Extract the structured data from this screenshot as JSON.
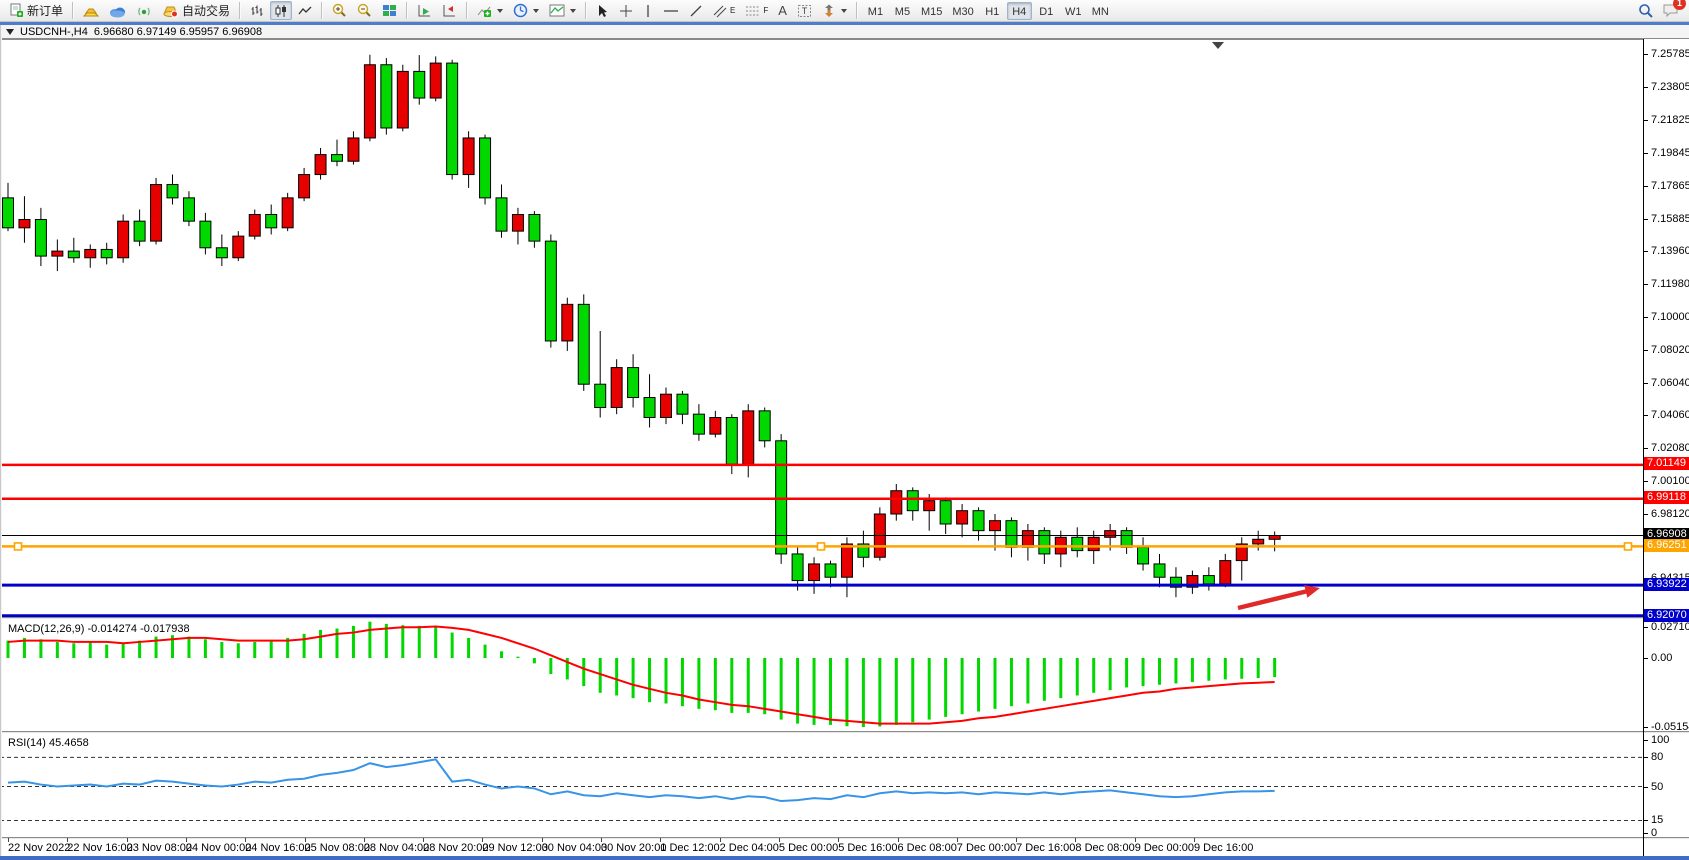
{
  "toolbar": {
    "new_order_label": "新订单",
    "auto_trading_label": "自动交易",
    "tool_glyphs": {
      "text_tool": "A",
      "label_tool": "T",
      "channel_sub": "E",
      "fibo_sub": "F"
    },
    "timeframes": [
      "M1",
      "M5",
      "M15",
      "M30",
      "H1",
      "H4",
      "D1",
      "W1",
      "MN"
    ],
    "active_timeframe": "H4",
    "notification_count": "1"
  },
  "chart_header": {
    "symbol": "USDCNH-,H4",
    "ohlc": "6.96680 6.97149 6.95957 6.96908"
  },
  "price_axis_ticks": [
    "7.25785",
    "7.23805",
    "7.21825",
    "7.19845",
    "7.17865",
    "7.15885",
    "7.13960",
    "7.11980",
    "7.10000",
    "7.08020",
    "7.06040",
    "7.04060",
    "7.02080",
    "7.00100",
    "6.98120",
    "6.94315"
  ],
  "indicators": {
    "macd": {
      "name": "MACD(12,26,9)",
      "values": "-0.014274 -0.017938",
      "axis_ticks": [
        "0.027103",
        "0.00",
        "-0.051546"
      ]
    },
    "rsi": {
      "name": "RSI(14)",
      "value": "45.4658",
      "axis_ticks": [
        "100",
        "80",
        "50",
        "15",
        "0"
      ]
    }
  },
  "time_axis": [
    "22 Nov 2022",
    "22 Nov 16:00",
    "23 Nov 08:00",
    "24 Nov 00:00",
    "24 Nov 16:00",
    "25 Nov 08:00",
    "28 Nov 04:00",
    "28 Nov 20:00",
    "29 Nov 12:00",
    "30 Nov 04:00",
    "30 Nov 20:00",
    "1 Dec 12:00",
    "2 Dec 04:00",
    "5 Dec 00:00",
    "5 Dec 16:00",
    "6 Dec 08:00",
    "7 Dec 00:00",
    "7 Dec 16:00",
    "8 Dec 08:00",
    "9 Dec 00:00",
    "9 Dec 16:00"
  ],
  "chart_data": {
    "type": "candlestick",
    "symbol": "USDCNH-,H4",
    "timeframe": "H4",
    "price_axis_range": [
      6.9195,
      7.26687
    ],
    "up_color": "#e60000",
    "down_color": "#00d800",
    "candles": [
      [
        7.172,
        7.181,
        7.152,
        7.154
      ],
      [
        7.154,
        7.173,
        7.145,
        7.159
      ],
      [
        7.159,
        7.166,
        7.131,
        7.137
      ],
      [
        7.137,
        7.147,
        7.128,
        7.14
      ],
      [
        7.14,
        7.148,
        7.133,
        7.136
      ],
      [
        7.136,
        7.144,
        7.13,
        7.141
      ],
      [
        7.141,
        7.145,
        7.132,
        7.136
      ],
      [
        7.136,
        7.162,
        7.133,
        7.158
      ],
      [
        7.158,
        7.165,
        7.143,
        7.146
      ],
      [
        7.146,
        7.184,
        7.144,
        7.18
      ],
      [
        7.18,
        7.186,
        7.168,
        7.172
      ],
      [
        7.172,
        7.176,
        7.155,
        7.158
      ],
      [
        7.158,
        7.163,
        7.138,
        7.142
      ],
      [
        7.142,
        7.15,
        7.131,
        7.136
      ],
      [
        7.136,
        7.152,
        7.134,
        7.149
      ],
      [
        7.149,
        7.165,
        7.147,
        7.162
      ],
      [
        7.162,
        7.168,
        7.15,
        7.154
      ],
      [
        7.154,
        7.175,
        7.152,
        7.172
      ],
      [
        7.172,
        7.19,
        7.17,
        7.186
      ],
      [
        7.186,
        7.202,
        7.183,
        7.198
      ],
      [
        7.198,
        7.207,
        7.191,
        7.194
      ],
      [
        7.194,
        7.212,
        7.192,
        7.208
      ],
      [
        7.208,
        7.258,
        7.206,
        7.252
      ],
      [
        7.252,
        7.256,
        7.21,
        7.214
      ],
      [
        7.214,
        7.252,
        7.212,
        7.248
      ],
      [
        7.248,
        7.2578,
        7.228,
        7.232
      ],
      [
        7.232,
        7.257,
        7.23,
        7.253
      ],
      [
        7.253,
        7.255,
        7.183,
        7.186
      ],
      [
        7.186,
        7.212,
        7.178,
        7.208
      ],
      [
        7.208,
        7.21,
        7.168,
        7.172
      ],
      [
        7.172,
        7.18,
        7.148,
        7.152
      ],
      [
        7.152,
        7.166,
        7.144,
        7.162
      ],
      [
        7.162,
        7.164,
        7.142,
        7.146
      ],
      [
        7.146,
        7.15,
        7.082,
        7.086
      ],
      [
        7.086,
        7.112,
        7.08,
        7.108
      ],
      [
        7.108,
        7.114,
        7.056,
        7.06
      ],
      [
        7.06,
        7.092,
        7.04,
        7.046
      ],
      [
        7.046,
        7.075,
        7.042,
        7.07
      ],
      [
        7.07,
        7.078,
        7.046,
        7.052
      ],
      [
        7.052,
        7.066,
        7.034,
        7.04
      ],
      [
        7.04,
        7.058,
        7.036,
        7.054
      ],
      [
        7.054,
        7.056,
        7.036,
        7.042
      ],
      [
        7.042,
        7.048,
        7.026,
        7.03
      ],
      [
        7.03,
        7.044,
        7.028,
        7.04
      ],
      [
        7.04,
        7.042,
        7.006,
        7.012
      ],
      [
        7.012,
        7.048,
        7.004,
        7.044
      ],
      [
        7.044,
        7.046,
        7.022,
        7.026
      ],
      [
        7.026,
        7.03,
        6.952,
        6.958
      ],
      [
        6.958,
        6.962,
        6.936,
        6.942
      ],
      [
        6.942,
        6.956,
        6.934,
        6.952
      ],
      [
        6.952,
        6.954,
        6.938,
        6.944
      ],
      [
        6.944,
        6.968,
        6.932,
        6.964
      ],
      [
        6.964,
        6.972,
        6.95,
        6.956
      ],
      [
        6.956,
        6.986,
        6.954,
        6.982
      ],
      [
        6.982,
        7.0,
        6.978,
        6.996
      ],
      [
        6.996,
        6.998,
        6.978,
        6.984
      ],
      [
        6.984,
        6.994,
        6.972,
        6.99
      ],
      [
        6.99,
        6.992,
        6.97,
        6.976
      ],
      [
        6.976,
        6.988,
        6.968,
        6.984
      ],
      [
        6.984,
        6.986,
        6.966,
        6.972
      ],
      [
        6.972,
        6.982,
        6.96,
        6.978
      ],
      [
        6.978,
        6.98,
        6.956,
        6.962
      ],
      [
        6.962,
        6.976,
        6.954,
        6.972
      ],
      [
        6.972,
        6.974,
        6.952,
        6.958
      ],
      [
        6.958,
        6.972,
        6.95,
        6.968
      ],
      [
        6.968,
        6.974,
        6.956,
        6.96
      ],
      [
        6.96,
        6.972,
        6.952,
        6.968
      ],
      [
        6.968,
        6.976,
        6.96,
        6.972
      ],
      [
        6.972,
        6.974,
        6.958,
        6.962
      ],
      [
        6.962,
        6.968,
        6.948,
        6.952
      ],
      [
        6.952,
        6.958,
        6.938,
        6.944
      ],
      [
        6.944,
        6.95,
        6.932,
        6.938
      ],
      [
        6.938,
        6.948,
        6.934,
        6.945
      ],
      [
        6.945,
        6.95,
        6.936,
        6.94
      ],
      [
        6.94,
        6.958,
        6.938,
        6.954
      ],
      [
        6.954,
        6.968,
        6.942,
        6.964
      ],
      [
        6.964,
        6.972,
        6.96,
        6.9668
      ],
      [
        6.9668,
        6.97149,
        6.95957,
        6.96908
      ]
    ],
    "hlines": [
      {
        "value": 7.01149,
        "color": "#ff0000",
        "width": 2.5
      },
      {
        "value": 6.99118,
        "color": "#ff0000",
        "width": 2.5
      },
      {
        "value": 6.96908,
        "color": "#000000",
        "width": 1,
        "type": "last-price"
      },
      {
        "value": 6.96251,
        "color": "#ffa500",
        "width": 2.5,
        "selected": true
      },
      {
        "value": 6.93922,
        "color": "#0000cd",
        "width": 3
      },
      {
        "value": 6.9207,
        "color": "#0000cd",
        "width": 3.5
      }
    ],
    "macd": {
      "histogram": [
        0.013,
        0.015,
        0.014,
        0.012,
        0.011,
        0.012,
        0.01,
        0.011,
        0.013,
        0.016,
        0.017,
        0.016,
        0.014,
        0.012,
        0.011,
        0.012,
        0.013,
        0.015,
        0.018,
        0.021,
        0.022,
        0.024,
        0.027103,
        0.0255,
        0.0245,
        0.024,
        0.0235,
        0.019,
        0.015,
        0.01,
        0.005,
        0.001,
        -0.004,
        -0.012,
        -0.016,
        -0.021,
        -0.026,
        -0.028,
        -0.03,
        -0.033,
        -0.034,
        -0.036,
        -0.038,
        -0.039,
        -0.041,
        -0.041,
        -0.042,
        -0.046,
        -0.049,
        -0.05,
        -0.05,
        -0.051,
        -0.051546,
        -0.0512,
        -0.05,
        -0.048,
        -0.046,
        -0.044,
        -0.042,
        -0.04,
        -0.038,
        -0.036,
        -0.034,
        -0.032,
        -0.03,
        -0.028,
        -0.026,
        -0.024,
        -0.022,
        -0.021,
        -0.02,
        -0.019,
        -0.018,
        -0.017,
        -0.016,
        -0.0155,
        -0.015,
        -0.014274
      ],
      "signal": [
        0.012,
        0.013,
        0.013,
        0.013,
        0.012,
        0.012,
        0.012,
        0.011,
        0.012,
        0.013,
        0.014,
        0.015,
        0.015,
        0.014,
        0.013,
        0.013,
        0.013,
        0.013,
        0.014,
        0.016,
        0.018,
        0.019,
        0.021,
        0.022,
        0.023,
        0.023,
        0.0235,
        0.0225,
        0.021,
        0.018,
        0.015,
        0.011,
        0.007,
        0.002,
        -0.003,
        -0.008,
        -0.012,
        -0.016,
        -0.02,
        -0.023,
        -0.026,
        -0.028,
        -0.031,
        -0.033,
        -0.035,
        -0.036,
        -0.038,
        -0.04,
        -0.042,
        -0.044,
        -0.046,
        -0.047,
        -0.048,
        -0.049,
        -0.049,
        -0.049,
        -0.049,
        -0.048,
        -0.047,
        -0.045,
        -0.044,
        -0.042,
        -0.04,
        -0.038,
        -0.036,
        -0.034,
        -0.032,
        -0.03,
        -0.028,
        -0.026,
        -0.025,
        -0.023,
        -0.022,
        -0.021,
        -0.02,
        -0.019,
        -0.0185,
        -0.017938
      ],
      "hist_color": "#00d800",
      "signal_color": "#ff0000"
    },
    "rsi": {
      "values": [
        54,
        55,
        52,
        50,
        51,
        52,
        50,
        53,
        52,
        56,
        55,
        53,
        51,
        50,
        52,
        55,
        54,
        57,
        58,
        62,
        64,
        67,
        74,
        70,
        72,
        75,
        78,
        55,
        57,
        52,
        48,
        50,
        48,
        42,
        45,
        41,
        40,
        43,
        41,
        39,
        41,
        40,
        38,
        40,
        37,
        40,
        39,
        35,
        36,
        38,
        37,
        41,
        39,
        43,
        45,
        43,
        44,
        43,
        44,
        42,
        44,
        43,
        42,
        44,
        42,
        44,
        45,
        46,
        44,
        42,
        40,
        39,
        40,
        42,
        44,
        45,
        45,
        45.4658
      ],
      "levels": [
        80,
        50,
        15
      ],
      "range": [
        0,
        100
      ],
      "line_color": "#3794e6"
    },
    "arrow_annotation": {
      "from": [
        1238,
        607
      ],
      "to": [
        1320,
        587
      ],
      "color": "#e02a2a"
    }
  }
}
